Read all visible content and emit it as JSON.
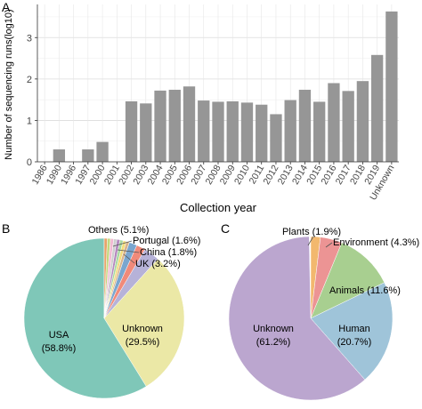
{
  "panels": {
    "a": {
      "letter": "A"
    },
    "b": {
      "letter": "B"
    },
    "c": {
      "letter": "C"
    }
  },
  "chart_data": [
    {
      "type": "bar",
      "panel": "A",
      "xlabel": "Collection year",
      "ylabel": "Number of sequencing runs(log10)",
      "ylim": [
        0,
        3.8
      ],
      "yticks": [
        "0",
        "1",
        "2",
        "3"
      ],
      "grid": true,
      "bar_color": "#969696",
      "categories": [
        "1986",
        "1990",
        "1996",
        "1997",
        "2000",
        "2001",
        "2002",
        "2003",
        "2004",
        "2005",
        "2006",
        "2007",
        "2008",
        "2009",
        "2010",
        "2011",
        "2012",
        "2013",
        "2014",
        "2015",
        "2016",
        "2017",
        "2018",
        "2019",
        "Unknown"
      ],
      "values": [
        0,
        0.3,
        0,
        0.3,
        0.48,
        0,
        1.46,
        1.41,
        1.72,
        1.74,
        1.82,
        1.48,
        1.45,
        1.46,
        1.43,
        1.38,
        1.15,
        1.49,
        1.74,
        1.45,
        1.9,
        1.71,
        1.95,
        2.58,
        3.63
      ]
    },
    {
      "type": "pie",
      "panel": "B",
      "slices": [
        {
          "label": "USA",
          "pct": "(58.8%)",
          "value": 58.8,
          "color": "#7fc7b8"
        },
        {
          "label": "Unknown",
          "pct": "(29.5%)",
          "value": 29.5,
          "color": "#ebe8a6"
        },
        {
          "label": "UK (3.2%)",
          "value": 3.2,
          "color": "#b6b2d8"
        },
        {
          "label": "China (1.8%)",
          "value": 1.8,
          "color": "#f08a7a"
        },
        {
          "label": "Portugal (1.6%)",
          "value": 1.6,
          "color": "#7aa6cf"
        },
        {
          "label": "Others (5.1%)",
          "value": 5.1,
          "color": "#d4a46a"
        }
      ],
      "others_colors": [
        "#e8a26a",
        "#c2d87e",
        "#f2b9d2",
        "#cfcfcf",
        "#b58ac0",
        "#a8d8a0",
        "#f3dc7a",
        "#d9b48c"
      ]
    },
    {
      "type": "pie",
      "panel": "C",
      "slices": [
        {
          "label": "Unknown",
          "pct": "(61.2%)",
          "value": 61.2,
          "color": "#bba6cf"
        },
        {
          "label": "Human",
          "pct": "(20.7%)",
          "value": 20.7,
          "color": "#9fc4d9"
        },
        {
          "label": "Animals (11.6%)",
          "value": 11.6,
          "color": "#a8cf90"
        },
        {
          "label": "Environment (4.3%)",
          "value": 4.3,
          "color": "#ec9494"
        },
        {
          "label": "Plants (1.9%)",
          "value": 1.9,
          "color": "#f2b86e"
        }
      ]
    }
  ]
}
